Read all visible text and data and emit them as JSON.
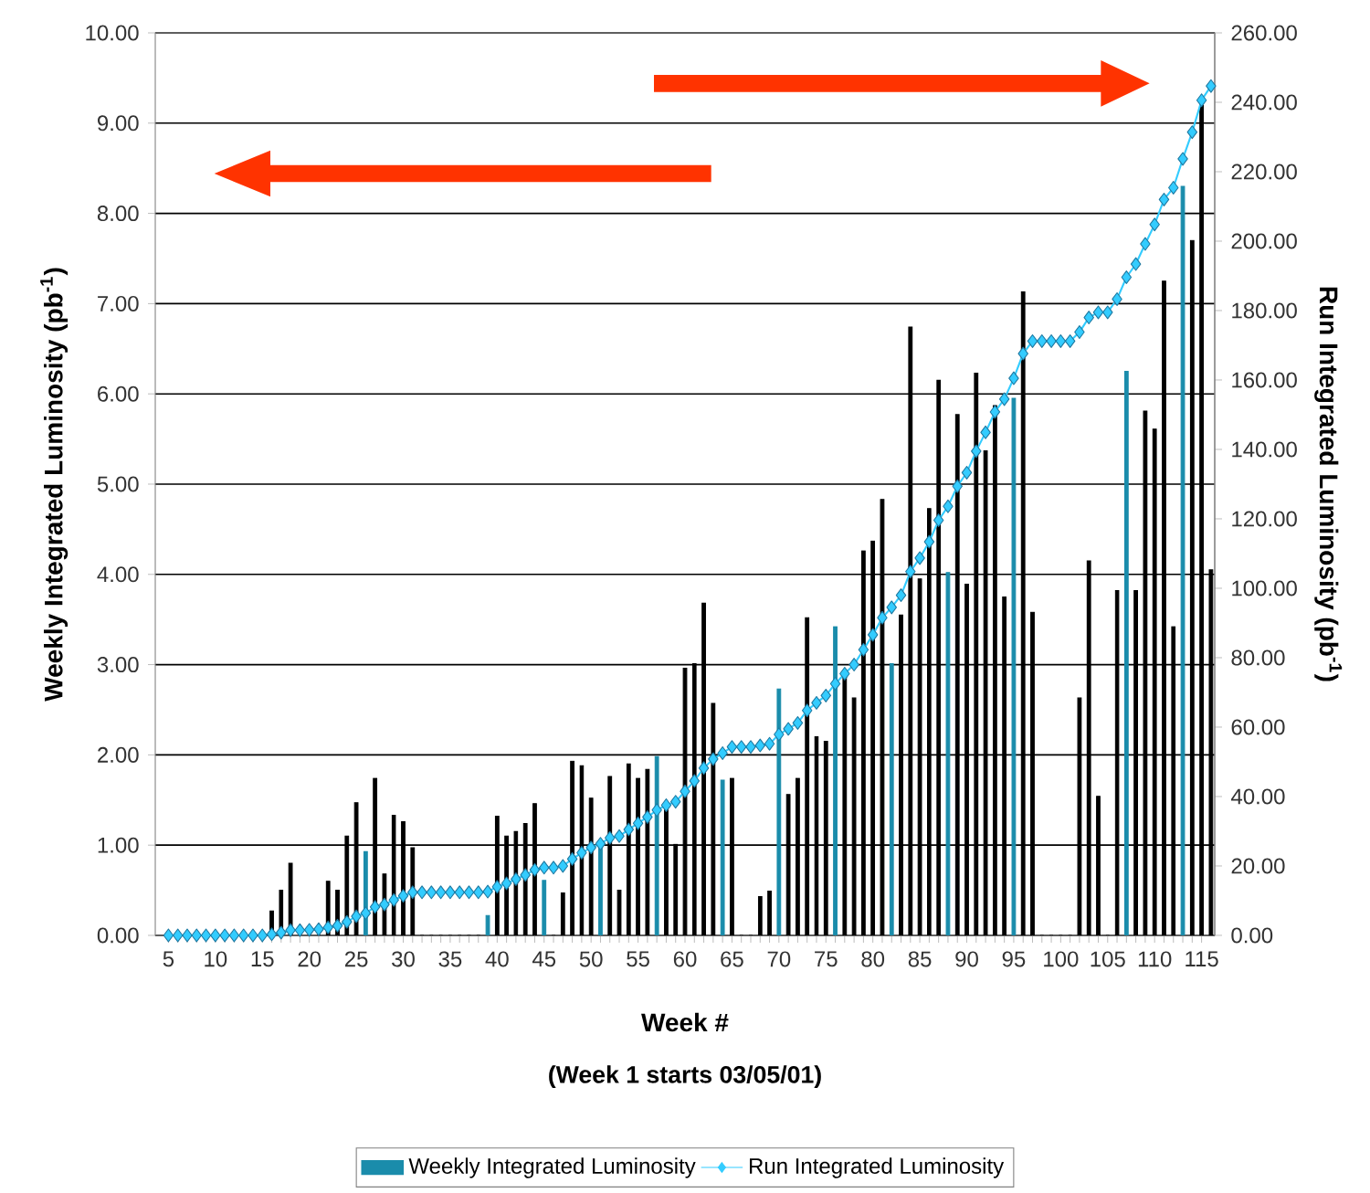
{
  "chart_data": {
    "type": "bar",
    "xlabel": "Week #",
    "ylabel": "Weekly Integrated Luminosity (pb$^{-1}$)",
    "y2label": "Run Integrated Luminosity (pb$^{-1}$)",
    "annotations": [
      "(Week 1 starts 03/05/01)"
    ],
    "x": [
      5,
      6,
      7,
      8,
      9,
      10,
      11,
      12,
      13,
      14,
      15,
      16,
      17,
      18,
      19,
      20,
      21,
      22,
      23,
      24,
      25,
      26,
      27,
      28,
      29,
      30,
      31,
      32,
      33,
      34,
      35,
      36,
      37,
      38,
      39,
      40,
      41,
      42,
      43,
      44,
      45,
      46,
      47,
      48,
      49,
      50,
      51,
      52,
      53,
      54,
      55,
      56,
      57,
      58,
      59,
      60,
      61,
      62,
      63,
      64,
      65,
      66,
      67,
      68,
      69,
      70,
      71,
      72,
      73,
      74,
      75,
      76,
      77,
      78,
      79,
      80,
      81,
      82,
      83,
      84,
      85,
      86,
      87,
      88,
      89,
      90,
      91,
      92,
      93,
      94,
      95,
      96,
      97,
      98,
      99,
      100,
      101,
      102,
      103,
      104,
      105,
      106,
      107,
      108,
      109,
      110,
      111,
      112,
      113,
      114,
      115,
      116
    ],
    "series": [
      {
        "name": "Weekly Integrated Luminosity",
        "color": "#1a8cab",
        "colors": [
          "#000000",
          "#000000",
          "#000000",
          "#000000",
          "#000000",
          "#000000",
          "#000000",
          "#000000",
          "#000000",
          "#000000",
          "#000000",
          "#000000",
          "#000000",
          "#000000",
          "#000000",
          "#000000",
          "#000000",
          "#000000",
          "#000000",
          "#000000",
          "#000000",
          "#1a8cab",
          "#000000",
          "#000000",
          "#000000",
          "#000000",
          "#000000",
          "#000000",
          "#000000",
          "#000000",
          "#000000",
          "#000000",
          "#000000",
          "#000000",
          "#1a8cab",
          "#000000",
          "#000000",
          "#000000",
          "#000000",
          "#000000",
          "#1a8cab",
          "#000000",
          "#000000",
          "#000000",
          "#000000",
          "#000000",
          "#1a8cab",
          "#000000",
          "#000000",
          "#000000",
          "#000000",
          "#000000",
          "#1a8cab",
          "#000000",
          "#000000",
          "#000000",
          "#000000",
          "#000000",
          "#000000",
          "#1a8cab",
          "#000000",
          "#000000",
          "#000000",
          "#000000",
          "#000000",
          "#1a8cab",
          "#000000",
          "#000000",
          "#000000",
          "#000000",
          "#000000",
          "#1a8cab",
          "#000000",
          "#000000",
          "#000000",
          "#000000",
          "#000000",
          "#1a8cab",
          "#000000",
          "#000000",
          "#000000",
          "#000000",
          "#000000",
          "#1a8cab",
          "#000000",
          "#000000",
          "#000000",
          "#000000",
          "#000000",
          "#000000",
          "#1a8cab",
          "#000000",
          "#000000",
          "#000000",
          "#000000",
          "#000000",
          "#000000",
          "#000000",
          "#000000",
          "#000000",
          "#000000",
          "#000000",
          "#1a8cab",
          "#000000",
          "#000000",
          "#000000",
          "#000000",
          "#000000",
          "#1a8cab",
          "#000000",
          "#000000",
          "#000000"
        ],
        "values": [
          0,
          0,
          0,
          0,
          0,
          0,
          0,
          0,
          0,
          0,
          0,
          0.27,
          0.5,
          0.8,
          0,
          0,
          0,
          0.6,
          0.5,
          1.1,
          1.47,
          0.93,
          1.74,
          0.68,
          1.33,
          1.26,
          0.97,
          0,
          0,
          0,
          0,
          0,
          0,
          0,
          0.22,
          1.32,
          1.1,
          1.15,
          1.24,
          1.46,
          0.61,
          0,
          0.47,
          1.93,
          1.88,
          1.52,
          1.05,
          1.76,
          0.5,
          1.9,
          1.74,
          1.84,
          1.98,
          1.42,
          1.01,
          2.96,
          3.01,
          3.68,
          2.57,
          1.72,
          1.74,
          0,
          0,
          0.43,
          0.49,
          2.73,
          1.56,
          1.74,
          3.52,
          2.2,
          2.15,
          3.42,
          2.9,
          2.63,
          4.26,
          4.37,
          4.83,
          3.01,
          3.55,
          6.74,
          3.95,
          4.73,
          6.15,
          4.02,
          5.77,
          3.89,
          6.23,
          5.37,
          5.87,
          3.75,
          5.95,
          7.13,
          3.58,
          0,
          0,
          0,
          0,
          2.63,
          4.15,
          1.54,
          0,
          3.82,
          6.25,
          3.82,
          5.81,
          5.61,
          7.25,
          3.42,
          8.3,
          7.7,
          9.2,
          4.05
        ]
      },
      {
        "name": "Run Integrated Luminosity",
        "type": "line",
        "axis": "y2",
        "color": "#33ccff",
        "marker": "diamond",
        "values": [
          0,
          0,
          0,
          0,
          0,
          0,
          0,
          0,
          0,
          0,
          0,
          0.3,
          0.8,
          1.5,
          1.5,
          1.6,
          1.8,
          2.3,
          2.8,
          3.9,
          5.5,
          6.4,
          8.2,
          8.9,
          10.2,
          11.4,
          12.4,
          12.4,
          12.4,
          12.4,
          12.4,
          12.4,
          12.4,
          12.4,
          12.6,
          14,
          15,
          16.2,
          17.4,
          18.9,
          19.5,
          19.5,
          20,
          22,
          23.8,
          25.3,
          26.4,
          28.1,
          28.6,
          30.5,
          32.3,
          34.1,
          36.1,
          37.5,
          38.5,
          41.5,
          44.5,
          48.2,
          50.8,
          52.5,
          54.3,
          54.3,
          54.3,
          54.7,
          55.2,
          57.9,
          59.5,
          61.2,
          64.8,
          67,
          69.1,
          72.5,
          75.4,
          78,
          82.3,
          86.6,
          91.5,
          94.5,
          98,
          104.8,
          108.7,
          113.4,
          119.6,
          123.6,
          129.4,
          133.3,
          139.5,
          144.9,
          150.8,
          154.5,
          160.5,
          167.6,
          171.2,
          171.2,
          171.2,
          171.2,
          171.2,
          173.8,
          178,
          179.5,
          179.5,
          183.3,
          189.6,
          193.4,
          199.2,
          204.8,
          212,
          215.4,
          223.7,
          231.4,
          240.6,
          244.7
        ]
      }
    ],
    "xlim": [
      3.6,
      116.4
    ],
    "xticks": [
      5,
      10,
      15,
      20,
      25,
      30,
      35,
      40,
      45,
      50,
      55,
      60,
      65,
      70,
      75,
      80,
      85,
      90,
      95,
      100,
      105,
      110,
      115
    ],
    "ylim": [
      0,
      10
    ],
    "yticks": [
      {
        "value": 0,
        "label": "0.00"
      },
      {
        "value": 1,
        "label": "1.00"
      },
      {
        "value": 2,
        "label": "2.00"
      },
      {
        "value": 3,
        "label": "3.00"
      },
      {
        "value": 4,
        "label": "4.00"
      },
      {
        "value": 5,
        "label": "5.00"
      },
      {
        "value": 6,
        "label": "6.00"
      },
      {
        "value": 7,
        "label": "7.00"
      },
      {
        "value": 8,
        "label": "8.00"
      },
      {
        "value": 9,
        "label": "9.00"
      },
      {
        "value": 10,
        "label": "10.00"
      }
    ],
    "y2lim": [
      0,
      260
    ],
    "y2ticks": [
      {
        "value": 0,
        "label": "0.00"
      },
      {
        "value": 20,
        "label": "20.00"
      },
      {
        "value": 40,
        "label": "40.00"
      },
      {
        "value": 60,
        "label": "60.00"
      },
      {
        "value": 80,
        "label": "80.00"
      },
      {
        "value": 100,
        "label": "100.00"
      },
      {
        "value": 120,
        "label": "120.00"
      },
      {
        "value": 140,
        "label": "140.00"
      },
      {
        "value": 160,
        "label": "160.00"
      },
      {
        "value": 180,
        "label": "180.00"
      },
      {
        "value": 200,
        "label": "200.00"
      },
      {
        "value": 220,
        "label": "220.00"
      },
      {
        "value": 240,
        "label": "240.00"
      },
      {
        "value": 260,
        "label": "260.00"
      }
    ],
    "grid": "y",
    "legend": "bottom"
  }
}
